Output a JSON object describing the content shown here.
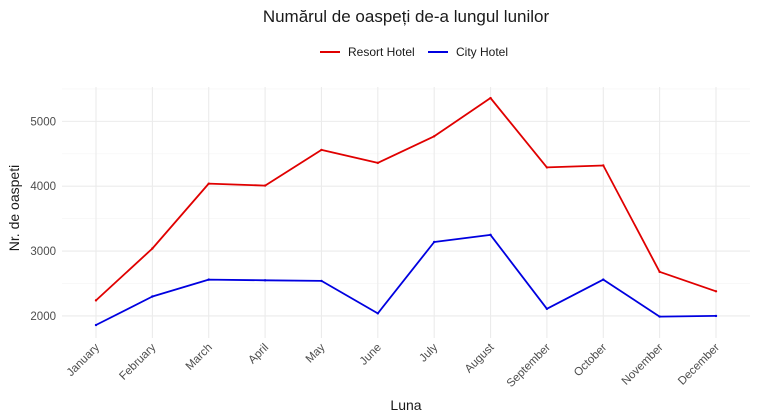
{
  "chart_data": {
    "type": "line",
    "title": "Numărul de oaspeți de-a lungul lunilor",
    "xlabel": "Luna",
    "ylabel": "Nr. de oaspeti",
    "categories": [
      "January",
      "February",
      "March",
      "April",
      "May",
      "June",
      "July",
      "August",
      "September",
      "October",
      "November",
      "December"
    ],
    "series": [
      {
        "name": "Resort Hotel",
        "color": "#e00000",
        "values": [
          2240,
          3040,
          4040,
          4010,
          4560,
          4360,
          4770,
          5360,
          4290,
          4320,
          2680,
          2380
        ]
      },
      {
        "name": "City Hotel",
        "color": "#0000e0",
        "values": [
          1860,
          2300,
          2560,
          2550,
          2540,
          2040,
          3140,
          3250,
          2110,
          2560,
          1990,
          2000
        ]
      }
    ],
    "y_ticks": [
      2000,
      3000,
      4000,
      5000
    ],
    "ylim": [
      1660,
      5530
    ],
    "grid": true,
    "legend_position": "top"
  }
}
